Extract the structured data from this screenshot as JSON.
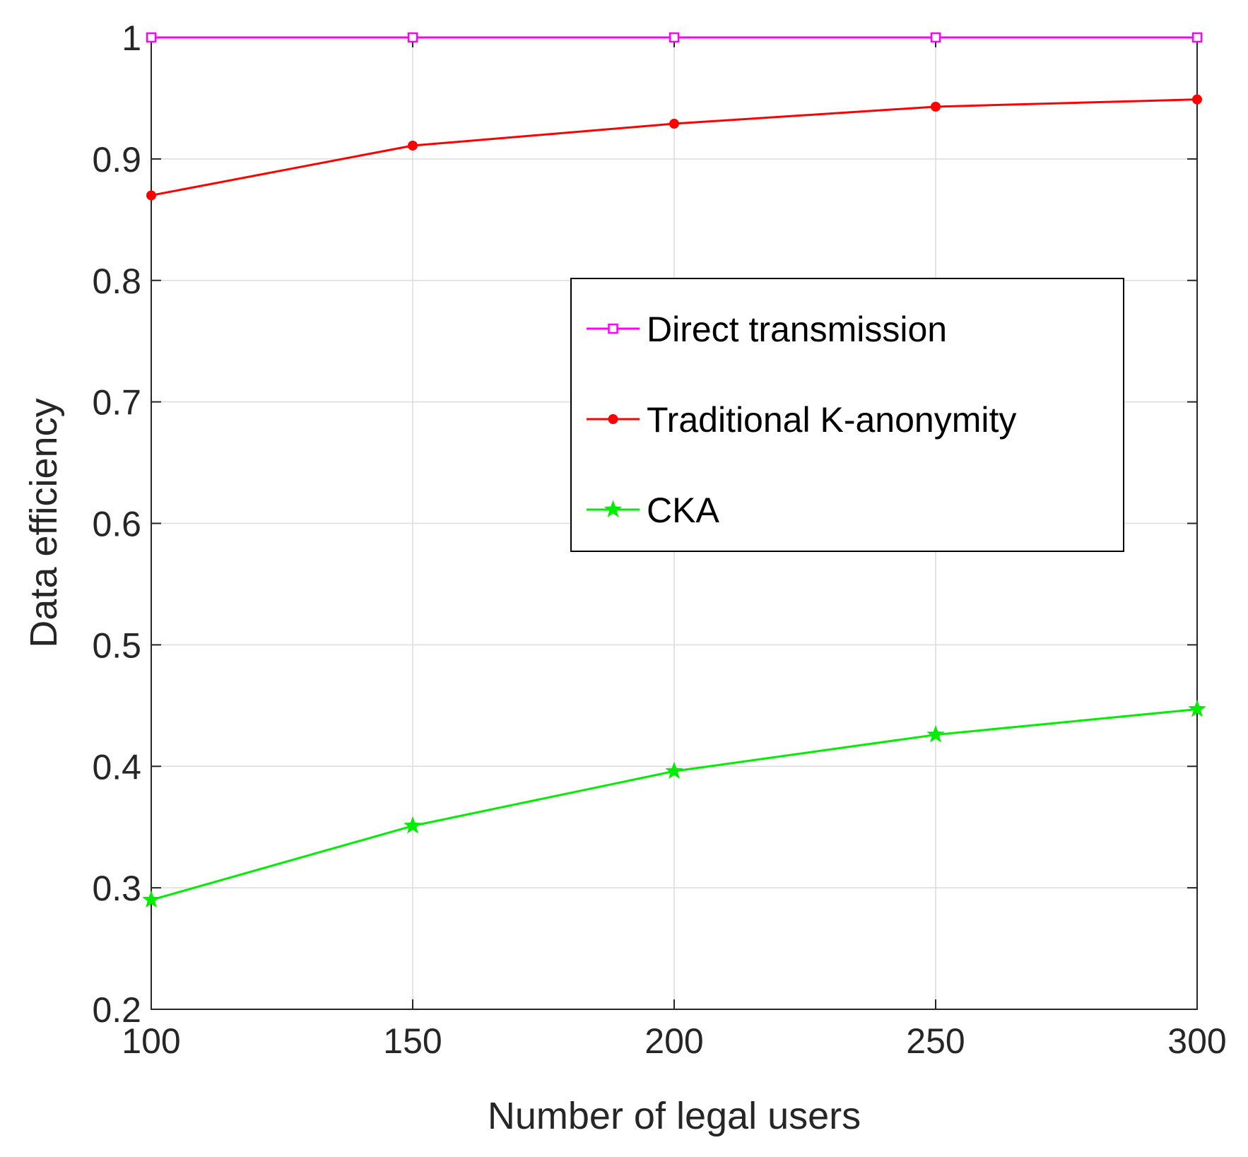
{
  "chart_data": {
    "type": "line",
    "x": [
      100,
      150,
      200,
      250,
      300
    ],
    "series": [
      {
        "name": "Direct transmission",
        "color": "#ff00ff",
        "marker": "square",
        "values": [
          1,
          1,
          1,
          1,
          1
        ]
      },
      {
        "name": "Traditional K-anonymity",
        "color": "#ff0000",
        "marker": "dot",
        "values": [
          0.87,
          0.911,
          0.929,
          0.943,
          0.949
        ]
      },
      {
        "name": "CKA",
        "color": "#00ee00",
        "marker": "star",
        "values": [
          0.29,
          0.351,
          0.396,
          0.426,
          0.447
        ]
      }
    ],
    "xlabel": "Number of legal users",
    "ylabel": "Data efficiency",
    "xlim": [
      100,
      300
    ],
    "ylim": [
      0.2,
      1
    ],
    "xticks": [
      100,
      150,
      200,
      250,
      300
    ],
    "yticks": [
      0.2,
      0.3,
      0.4,
      0.5,
      0.6,
      0.7,
      0.8,
      0.9,
      1
    ],
    "xtick_labels": [
      "100",
      "150",
      "200",
      "250",
      "300"
    ],
    "ytick_labels": [
      "0.2",
      "0.3",
      "0.4",
      "0.5",
      "0.6",
      "0.7",
      "0.8",
      "0.9",
      "1"
    ],
    "grid": true,
    "legend_position": "center-right"
  }
}
